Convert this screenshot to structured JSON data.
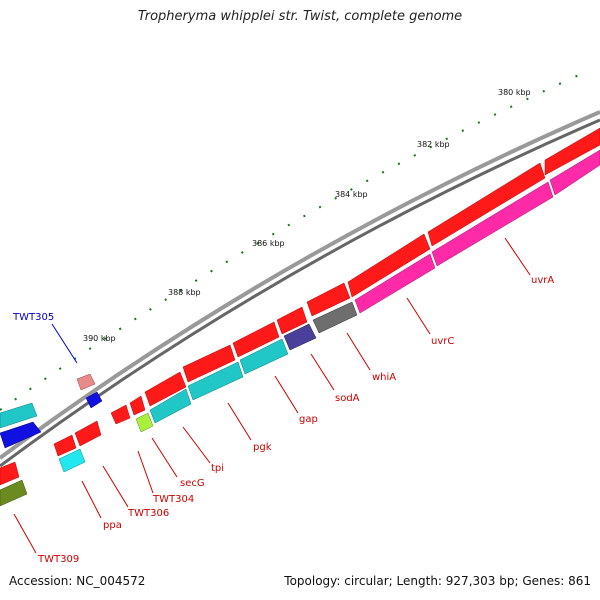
{
  "title": "Tropheryma whipplei str. Twist, complete genome",
  "footer": {
    "accession": "Accession: NC_004572",
    "summary": "Topology: circular; Length: 927,303 bp; Genes: 861"
  },
  "colors": {
    "forward_cds": "#ff1a1a",
    "reverse_cds": "#ff2aa8",
    "backbone": "#8c8c8c",
    "label_red": "#cc0000",
    "label_blue": "#0000cc",
    "tick": "#117711"
  },
  "kbp_labels": [
    "380 kbp",
    "382 kbp",
    "384 kbp",
    "386 kbp",
    "388 kbp",
    "390 kbp"
  ],
  "gene_labels": [
    {
      "name": "TWT305",
      "color": "blue"
    },
    {
      "name": "uvrA",
      "color": "red"
    },
    {
      "name": "uvrC",
      "color": "red"
    },
    {
      "name": "whiA",
      "color": "red"
    },
    {
      "name": "sodA",
      "color": "red"
    },
    {
      "name": "gap",
      "color": "red"
    },
    {
      "name": "pgk",
      "color": "red"
    },
    {
      "name": "tpi",
      "color": "red"
    },
    {
      "name": "secG",
      "color": "red"
    },
    {
      "name": "TWT304",
      "color": "red"
    },
    {
      "name": "TWT306",
      "color": "red"
    },
    {
      "name": "ppa",
      "color": "red"
    },
    {
      "name": "TWT309",
      "color": "red"
    }
  ]
}
